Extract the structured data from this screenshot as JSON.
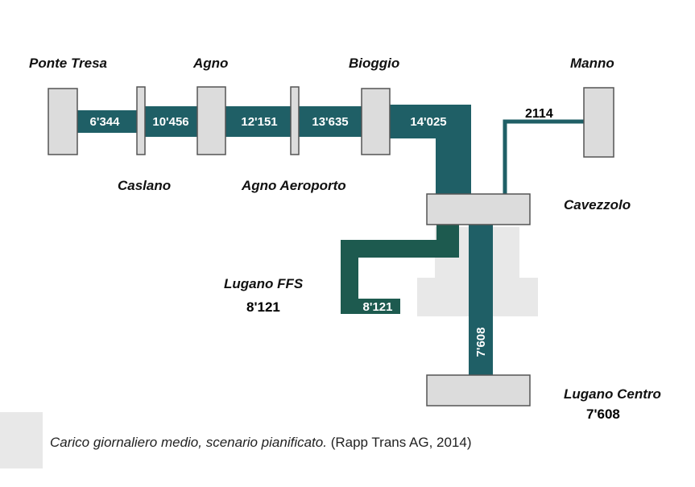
{
  "colors": {
    "line": "#1f5f66",
    "line_dark": "#1d5a4f",
    "station_fill": "#dcdcdc",
    "station_stroke": "#555555",
    "shadow": "#e6e6e6"
  },
  "stations": {
    "ponte_tresa": "Ponte Tresa",
    "agno": "Agno",
    "bioggio": "Bioggio",
    "manno": "Manno",
    "caslano": "Caslano",
    "agno_aeroporto": "Agno Aeroporto",
    "cavezzolo": "Cavezzolo",
    "lugano_ffs": "Lugano FFS",
    "lugano_centro": "Lugano Centro"
  },
  "loads": {
    "ponte_tresa_caslano": "6'344",
    "caslano_agno": "10'456",
    "agno_aeroporto": "12'151",
    "aeroporto_bioggio": "13'635",
    "bioggio_cavezzolo": "14'025",
    "manno_cavezzolo": "2114",
    "cavezzolo_lugano_ffs": "8'121",
    "cavezzolo_lugano_centro": "7'608"
  },
  "values": {
    "lugano_ffs": "8'121",
    "lugano_centro": "7'608"
  },
  "caption": {
    "text": "Carico giornaliero medio, scenario pianificato.",
    "source": "(Rapp Trans AG, 2014)"
  }
}
